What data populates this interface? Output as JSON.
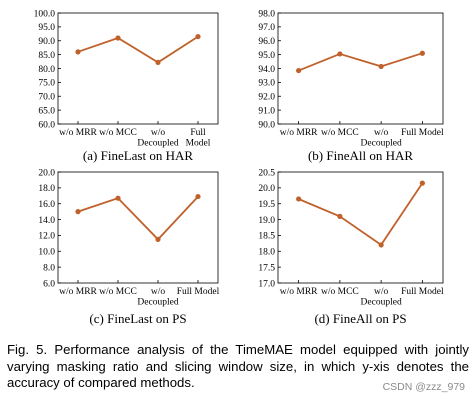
{
  "line_color": "#c0612b",
  "chart_data": [
    {
      "type": "line",
      "panel_label": "(a)",
      "caption": "FineLast on HAR",
      "categories": [
        "w/o MRR",
        "w/o MCC",
        "w/o\nDecoupled",
        "Full\nModel"
      ],
      "values": [
        86.0,
        91.0,
        82.2,
        91.5
      ],
      "ylim": [
        60.0,
        100.0
      ],
      "yticks": [
        "60.0",
        "65.0",
        "70.0",
        "75.0",
        "80.0",
        "85.0",
        "90.0",
        "95.0",
        "100.0"
      ]
    },
    {
      "type": "line",
      "panel_label": "(b)",
      "caption": "FineAll on HAR",
      "categories": [
        "w/o MRR",
        "w/o MCC",
        "w/o\nDecoupled",
        "Full Model"
      ],
      "values": [
        93.85,
        95.05,
        94.15,
        95.1
      ],
      "ylim": [
        90.0,
        98.0
      ],
      "yticks": [
        "90.0",
        "91.0",
        "92.0",
        "93.0",
        "94.0",
        "95.0",
        "96.0",
        "97.0",
        "98.0"
      ]
    },
    {
      "type": "line",
      "panel_label": "(c)",
      "caption": "FineLast on PS",
      "categories": [
        "w/o MRR",
        "w/o MCC",
        "w/o\nDecoupled",
        "Full Model"
      ],
      "values": [
        15.0,
        16.7,
        11.5,
        16.9
      ],
      "ylim": [
        6.0,
        20.0
      ],
      "yticks": [
        "6.0",
        "8.0",
        "10.0",
        "12.0",
        "14.0",
        "16.0",
        "18.0",
        "20.0"
      ]
    },
    {
      "type": "line",
      "panel_label": "(d)",
      "caption": "FineAll on PS",
      "categories": [
        "w/o MRR",
        "w/o MCC",
        "w/o\nDecoupled",
        "Full Model"
      ],
      "values": [
        19.65,
        19.1,
        18.2,
        20.15
      ],
      "ylim": [
        17.0,
        20.5
      ],
      "yticks": [
        "17.0",
        "17.5",
        "18.0",
        "18.5",
        "19.0",
        "19.5",
        "20.0",
        "20.5"
      ]
    }
  ],
  "figure_caption": "Fig. 5. Performance analysis of the TimeMAE model equipped with jointly varying masking ratio and slicing window size, in which y-xis denotes the accuracy of compared methods.",
  "watermark": "CSDN @zzz_979"
}
